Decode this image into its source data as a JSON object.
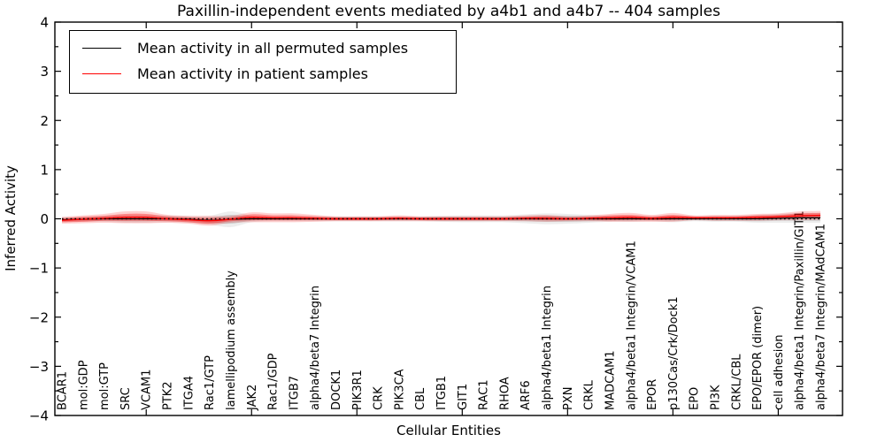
{
  "chart_data": {
    "type": "line",
    "title": "Paxillin-independent events mediated by a4b1 and a4b7 -- 404 samples",
    "xlabel": "Cellular Entities",
    "ylabel": "Inferred Activity",
    "ylim": [
      -4,
      4
    ],
    "y_tick_values": [
      4,
      3,
      2,
      1,
      0,
      -1,
      -2,
      -3,
      -4
    ],
    "y_tick_labels": [
      "4",
      "3",
      "2",
      "1",
      "0",
      "−1",
      "−2",
      "−3",
      "−4"
    ],
    "y_minor_tick_step": 0.5,
    "grid": false,
    "legend_position": "upper left",
    "categories": [
      "BCAR1",
      "mol:GDP",
      "mol:GTP",
      "SRC",
      "VCAM1",
      "PTK2",
      "ITGA4",
      "Rac1/GTP",
      "lamellipodium assembly",
      "JAK2",
      "Rac1/GDP",
      "ITGB7",
      "alpha4/beta7 Integrin",
      "DOCK1",
      "PIK3R1",
      "CRK",
      "PIK3CA",
      "CBL",
      "ITGB1",
      "GIT1",
      "RAC1",
      "RHOA",
      "ARF6",
      "alpha4/beta1 Integrin",
      "PXN",
      "CRKL",
      "MADCAM1",
      "alpha4/beta1 Integrin/VCAM1",
      "EPOR",
      "p130Cas/Crk/Dock1",
      "EPO",
      "PI3K",
      "CRKL/CBL",
      "EPO/EPOR (dimer)",
      "cell adhesion",
      "alpha4/beta1 Integrin/Paxillin/GIT1",
      "alpha4/beta7 Integrin/MAdCAM1"
    ],
    "x_major_tick_indices": [
      4,
      9,
      14,
      19,
      24,
      29,
      34
    ],
    "series": [
      {
        "name": "Mean activity in all permuted samples",
        "color": "#000000",
        "values": [
          -0.02,
          -0.01,
          0.0,
          0.0,
          0.0,
          0.0,
          -0.01,
          -0.03,
          -0.01,
          0.0,
          0.0,
          0.0,
          0.0,
          0.0,
          0.0,
          0.0,
          0.0,
          0.0,
          0.0,
          0.0,
          0.0,
          0.0,
          0.0,
          0.0,
          0.0,
          0.0,
          0.0,
          0.0,
          0.0,
          0.0,
          0.0,
          0.0,
          0.0,
          0.0,
          0.01,
          0.02,
          0.02
        ],
        "band_inner_halfwidth": [
          0.03,
          0.03,
          0.04,
          0.05,
          0.05,
          0.04,
          0.04,
          0.05,
          0.09,
          0.04,
          0.03,
          0.03,
          0.03,
          0.03,
          0.03,
          0.03,
          0.03,
          0.03,
          0.04,
          0.04,
          0.04,
          0.04,
          0.05,
          0.06,
          0.06,
          0.05,
          0.04,
          0.04,
          0.03,
          0.04,
          0.03,
          0.04,
          0.04,
          0.05,
          0.05,
          0.06,
          0.06
        ],
        "band_outer_halfwidth": [
          0.05,
          0.05,
          0.06,
          0.08,
          0.08,
          0.07,
          0.07,
          0.09,
          0.16,
          0.07,
          0.05,
          0.05,
          0.05,
          0.05,
          0.05,
          0.05,
          0.05,
          0.05,
          0.06,
          0.07,
          0.07,
          0.07,
          0.09,
          0.11,
          0.1,
          0.08,
          0.06,
          0.06,
          0.05,
          0.07,
          0.05,
          0.06,
          0.06,
          0.08,
          0.09,
          0.1,
          0.1
        ]
      },
      {
        "name": "Mean activity in patient samples",
        "color": "#ff0000",
        "values": [
          -0.03,
          -0.01,
          0.01,
          0.03,
          0.03,
          0.0,
          -0.02,
          -0.04,
          -0.01,
          0.03,
          0.02,
          0.02,
          0.01,
          0.0,
          0.0,
          0.0,
          0.01,
          0.0,
          0.0,
          0.0,
          0.0,
          0.0,
          0.01,
          0.01,
          0.0,
          0.01,
          0.02,
          0.03,
          0.01,
          0.03,
          0.02,
          0.02,
          0.02,
          0.03,
          0.04,
          0.06,
          0.07
        ],
        "band_inner_halfwidth": [
          0.04,
          0.05,
          0.05,
          0.07,
          0.07,
          0.05,
          0.05,
          0.06,
          0.04,
          0.06,
          0.05,
          0.05,
          0.04,
          0.03,
          0.03,
          0.03,
          0.03,
          0.03,
          0.03,
          0.03,
          0.03,
          0.03,
          0.03,
          0.04,
          0.03,
          0.03,
          0.05,
          0.05,
          0.04,
          0.05,
          0.03,
          0.03,
          0.03,
          0.04,
          0.04,
          0.05,
          0.05
        ],
        "band_outer_halfwidth": [
          0.07,
          0.08,
          0.09,
          0.12,
          0.12,
          0.08,
          0.08,
          0.1,
          0.07,
          0.1,
          0.09,
          0.09,
          0.07,
          0.05,
          0.05,
          0.05,
          0.06,
          0.05,
          0.05,
          0.05,
          0.05,
          0.05,
          0.06,
          0.07,
          0.05,
          0.06,
          0.08,
          0.09,
          0.07,
          0.09,
          0.05,
          0.06,
          0.06,
          0.07,
          0.07,
          0.09,
          0.09
        ]
      }
    ],
    "zero_line": {
      "value": 0,
      "style": "dotted",
      "color": "#000000"
    }
  },
  "styles": {
    "band_permuted_color": "#888888",
    "band_permuted_inner_opacity": 0.3,
    "band_permuted_outer_opacity": 0.15,
    "band_patient_color": "#ff0000",
    "band_patient_inner_opacity": 0.35,
    "band_patient_outer_opacity": 0.18,
    "spine_color": "#000000",
    "tick_color": "#000000",
    "text_color": "#000000"
  }
}
